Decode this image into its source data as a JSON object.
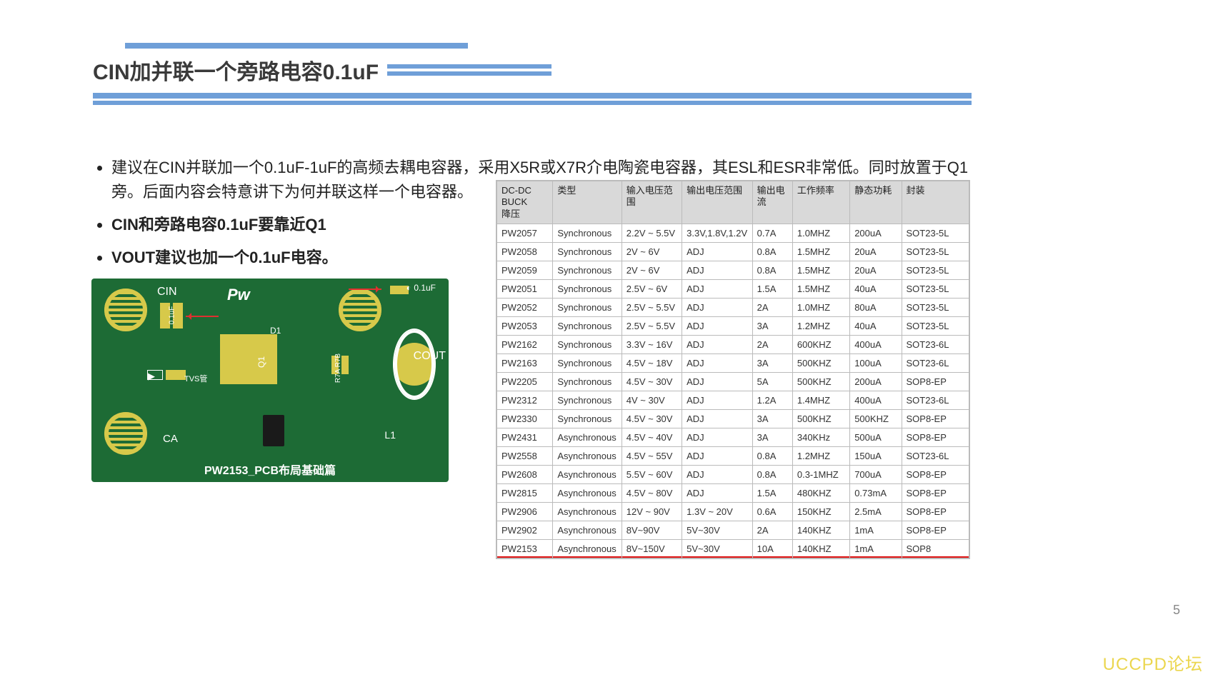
{
  "header": {
    "title": "CIN加并联一个旁路电容0.1uF",
    "bar_color": "#6f9fd8"
  },
  "bullets": [
    {
      "text": "建议在CIN并联加一个0.1uF-1uF的高频去耦电容器，采用X5R或X7R介电陶瓷电容器，其ESL和ESR非常低。同时放置于Q1旁。后面内容会特意讲下为何并联这样一个电容器。",
      "bold": false
    },
    {
      "text": "CIN和旁路电容0.1uF要靠近Q1",
      "bold": true
    },
    {
      "text": "VOUT建议也加一个0.1uF电容。",
      "bold": true
    }
  ],
  "pcb": {
    "caption": "PW2153_PCB布局基础篇",
    "labels": {
      "cin": "CIN",
      "cout": "COUT",
      "ca": "CA",
      "l1": "L1",
      "d1": "D1",
      "q1": "Q1",
      "top_cap": "0.1uF",
      "left_cap": "0.1uF",
      "tvs": "TVS管",
      "r78": "R7A R7B",
      "logo": "Pw"
    },
    "bg_color": "#1d6b35",
    "pad_color": "#d7c94a",
    "arrow_color": "#e03030"
  },
  "table": {
    "columns": [
      "DC-DC BUCK 降压",
      "类型",
      "输入电压范围",
      "输出电压范围",
      "输出电流",
      "工作频率",
      "静态功耗",
      "封装"
    ],
    "col_widths": [
      "78px",
      "96px",
      "84px",
      "96px",
      "56px",
      "80px",
      "72px",
      "94px"
    ],
    "header_bg": "#d9d9d9",
    "border_color": "#bbbbbb",
    "rows": [
      [
        "PW2057",
        "Synchronous",
        "2.2V ~ 5.5V",
        "3.3V,1.8V,1.2V",
        "0.7A",
        "1.0MHZ",
        "200uA",
        "SOT23-5L"
      ],
      [
        "PW2058",
        "Synchronous",
        "2V ~ 6V",
        "ADJ",
        "0.8A",
        "1.5MHZ",
        "20uA",
        "SOT23-5L"
      ],
      [
        "PW2059",
        "Synchronous",
        "2V ~ 6V",
        "ADJ",
        "0.8A",
        "1.5MHZ",
        "20uA",
        "SOT23-5L"
      ],
      [
        "PW2051",
        "Synchronous",
        "2.5V ~ 6V",
        "ADJ",
        "1.5A",
        "1.5MHZ",
        "40uA",
        "SOT23-5L"
      ],
      [
        "PW2052",
        "Synchronous",
        "2.5V ~ 5.5V",
        "ADJ",
        "2A",
        "1.0MHZ",
        "80uA",
        "SOT23-5L"
      ],
      [
        "PW2053",
        "Synchronous",
        "2.5V ~ 5.5V",
        "ADJ",
        "3A",
        "1.2MHZ",
        "40uA",
        "SOT23-5L"
      ],
      [
        "PW2162",
        "Synchronous",
        "3.3V ~ 16V",
        "ADJ",
        "2A",
        "600KHZ",
        "400uA",
        "SOT23-6L"
      ],
      [
        "PW2163",
        "Synchronous",
        "4.5V ~ 18V",
        "ADJ",
        "3A",
        "500KHZ",
        "100uA",
        "SOT23-6L"
      ],
      [
        "PW2205",
        "Synchronous",
        "4.5V ~ 30V",
        "ADJ",
        "5A",
        "500KHZ",
        "200uA",
        "SOP8-EP"
      ],
      [
        "PW2312",
        "Synchronous",
        "4V ~ 30V",
        "ADJ",
        "1.2A",
        "1.4MHZ",
        "400uA",
        "SOT23-6L"
      ],
      [
        "PW2330",
        "Synchronous",
        "4.5V ~ 30V",
        "ADJ",
        "3A",
        "500KHZ",
        "500KHZ",
        "SOP8-EP"
      ],
      [
        "PW2431",
        "Asynchronous",
        "4.5V ~ 40V",
        "ADJ",
        "3A",
        "340KHz",
        "500uA",
        "SOP8-EP"
      ],
      [
        "PW2558",
        "Asynchronous",
        "4.5V ~ 55V",
        "ADJ",
        "0.8A",
        "1.2MHZ",
        "150uA",
        "SOT23-6L"
      ],
      [
        "PW2608",
        "Asynchronous",
        "5.5V ~ 60V",
        "ADJ",
        "0.8A",
        "0.3-1MHZ",
        "700uA",
        "SOP8-EP"
      ],
      [
        "PW2815",
        "Asynchronous",
        "4.5V ~ 80V",
        "ADJ",
        "1.5A",
        "480KHZ",
        "0.73mA",
        "SOP8-EP"
      ],
      [
        "PW2906",
        "Asynchronous",
        "12V ~ 90V",
        "1.3V ~ 20V",
        "0.6A",
        "150KHZ",
        "2.5mA",
        "SOP8-EP"
      ],
      [
        "PW2902",
        "Asynchronous",
        "8V~90V",
        "5V~30V",
        "2A",
        "140KHZ",
        "1mA",
        "SOP8-EP"
      ],
      [
        "PW2153",
        "Asynchronous",
        "8V~150V",
        "5V~30V",
        "10A",
        "140KHZ",
        "1mA",
        "SOP8"
      ]
    ],
    "highlight_row_index": 17,
    "highlight_color": "#d11111"
  },
  "footer": {
    "page": "5",
    "watermark": "UCCPD论坛"
  }
}
